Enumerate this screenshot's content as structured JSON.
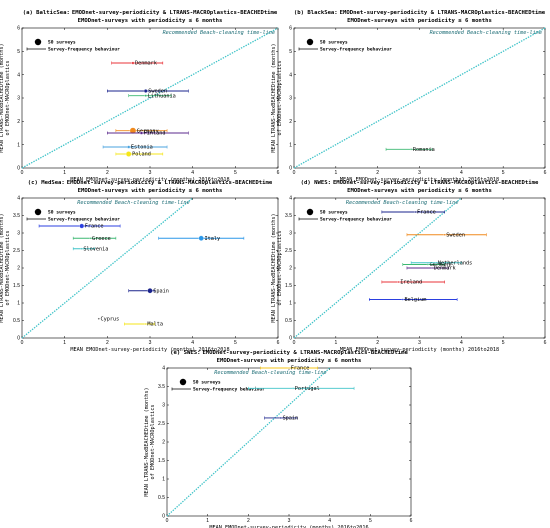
{
  "chart_data": [
    {
      "type": "scatter",
      "panel": "(a) BalticSea:",
      "title_line1": "EMODnet-survey-periodicity & LTRANS-MACROplastics-BEACHEDtime",
      "title_line2": "EMODnet-surveys with periodicity ≤ 6 months",
      "xlabel": "MEAN EMODnet-survey-periodicity (months) 2016to2018",
      "ylabel_line1": "MEAN LTRANS-MaxBEACHEDtime (months)",
      "ylabel_line2": "of EMODnet-MACROplastics",
      "xlim": [
        0,
        6
      ],
      "ylim": [
        0,
        6
      ],
      "xticks": [
        0,
        1,
        2,
        3,
        4,
        5,
        6
      ],
      "yticks": [
        0,
        1,
        2,
        3,
        4,
        5,
        6
      ],
      "diagonal_label": "Recommended Beach-cleaning time-line",
      "legend_size_label": "50 surveys",
      "legend_bar_label": "Survey-frequency behaviour",
      "points": [
        {
          "name": "Denmark",
          "x": 2.6,
          "y": 4.5,
          "xerr": [
            2.1,
            3.3
          ],
          "surveys": 8,
          "color": "#e8333a"
        },
        {
          "name": "Sweden",
          "x": 2.9,
          "y": 3.3,
          "xerr": [
            2.0,
            3.9
          ],
          "surveys": 14,
          "color": "#1a238c"
        },
        {
          "name": "Lithuania",
          "x": 2.9,
          "y": 3.1,
          "xerr": [
            2.5,
            3.5
          ],
          "surveys": 6,
          "color": "#3cb872"
        },
        {
          "name": "Germany",
          "x": 2.6,
          "y": 1.6,
          "xerr": [
            2.2,
            3.4
          ],
          "surveys": 46,
          "color": "#f08a1e"
        },
        {
          "name": "Finland",
          "x": 2.8,
          "y": 1.5,
          "xerr": [
            2.0,
            3.9
          ],
          "surveys": 10,
          "color": "#5b2a8c"
        },
        {
          "name": "Estonia",
          "x": 2.5,
          "y": 0.9,
          "xerr": [
            1.9,
            3.4
          ],
          "surveys": 10,
          "color": "#4aa3df"
        },
        {
          "name": "Poland",
          "x": 2.5,
          "y": 0.6,
          "xerr": [
            2.2,
            3.3
          ],
          "surveys": 34,
          "color": "#f5e619"
        }
      ]
    },
    {
      "type": "scatter",
      "panel": "(b) BlackSea:",
      "title_line1": "EMODnet-survey-periodicity & LTRANS-MACROplastics-BEACHEDtime",
      "title_line2": "EMODnet-surveys with periodicity ≤ 6 months",
      "xlabel": "MEAN EMODnet-survey-periodicity (months) 2016to2018",
      "ylabel_line1": "MEAN LTRANS-MaxBEACHEDtime (months)",
      "ylabel_line2": "of EMODnet-MACROplastics",
      "xlim": [
        0,
        6
      ],
      "ylim": [
        0,
        6
      ],
      "xticks": [
        0,
        1,
        2,
        3,
        4,
        5,
        6
      ],
      "yticks": [
        0,
        1,
        2,
        3,
        4,
        5,
        6
      ],
      "diagonal_label": "Recommended Beach-cleaning time-line",
      "legend_size_label": "50 surveys",
      "legend_bar_label": "Survey-frequency behaviour",
      "points": [
        {
          "name": "Romania",
          "x": 2.8,
          "y": 0.8,
          "xerr": [
            2.2,
            3.3
          ],
          "surveys": 2,
          "color": "#3cb872"
        }
      ]
    },
    {
      "type": "scatter",
      "panel": "(c) MedSea:",
      "title_line1": "EMODnet-survey-periodicity & LTRANS-MACROplastics-BEACHEDtime",
      "title_line2": "EMODnet-surveys with periodicity ≤ 6 months",
      "xlabel": "MEAN EMODnet-survey-periodicity (months) 2016to2018",
      "ylabel_line1": "MEAN LTRANS-MaxBEACHEDtime (months)",
      "ylabel_line2": "of EMODnet-MACROplastics",
      "xlim": [
        0,
        6
      ],
      "ylim": [
        0,
        4
      ],
      "xticks": [
        0,
        1,
        2,
        3,
        4,
        5,
        6
      ],
      "yticks": [
        0,
        0.5,
        1,
        1.5,
        2,
        2.5,
        3,
        3.5,
        4
      ],
      "diagonal_label": "Recommended Beach-cleaning time-line",
      "legend_size_label": "50 surveys",
      "legend_bar_label": "Survey-frequency behaviour",
      "points": [
        {
          "name": "France",
          "x": 1.4,
          "y": 3.2,
          "xerr": [
            0.4,
            2.3
          ],
          "surveys": 24,
          "color": "#2b3fe0"
        },
        {
          "name": "Italy",
          "x": 4.2,
          "y": 2.85,
          "xerr": [
            3.2,
            5.2
          ],
          "surveys": 30,
          "color": "#2b97e8"
        },
        {
          "name": "Greece",
          "x": 1.6,
          "y": 2.85,
          "xerr": [
            1.2,
            2.2
          ],
          "surveys": 4,
          "color": "#3cb872"
        },
        {
          "name": "Slovenia",
          "x": 1.4,
          "y": 2.55,
          "xerr": [
            1.2,
            1.7
          ],
          "surveys": 3,
          "color": "#3ec3c8"
        },
        {
          "name": "Spain",
          "x": 3.0,
          "y": 1.35,
          "xerr": [
            2.5,
            3.1
          ],
          "surveys": 30,
          "color": "#1a238c"
        },
        {
          "name": "Cyprus",
          "x": 1.8,
          "y": 0.55,
          "xerr": [
            1.8,
            1.8
          ],
          "surveys": 1,
          "color": "#555555"
        },
        {
          "name": "Malta",
          "x": 2.9,
          "y": 0.4,
          "xerr": [
            2.4,
            3.1
          ],
          "surveys": 2,
          "color": "#f5e619"
        }
      ]
    },
    {
      "type": "scatter",
      "panel": "(d) NWES:",
      "title_line1": "EMODnet-survey-periodicity & LTRANS-MACROplastics-BEACHEDtime",
      "title_line2": "EMODnet-surveys with periodicity ≤ 6 months",
      "xlabel": "MEAN EMODnet-survey-periodicity (months) 2016to2018",
      "ylabel_line1": "MEAN LTRANS-MaxBEACHEDtime (months)",
      "ylabel_line2": "of EMODnet-MACROplastics",
      "xlim": [
        0,
        6
      ],
      "ylim": [
        0,
        4
      ],
      "xticks": [
        0,
        1,
        2,
        3,
        4,
        5,
        6
      ],
      "yticks": [
        0,
        0.5,
        1,
        1.5,
        2,
        2.5,
        3,
        3.5,
        4
      ],
      "diagonal_label": "Recommended Beach-cleaning time-line",
      "legend_size_label": "50 surveys",
      "legend_bar_label": "Survey-frequency behaviour",
      "points": [
        {
          "name": "France",
          "x": 2.9,
          "y": 3.6,
          "xerr": [
            2.1,
            3.6
          ],
          "surveys": 3,
          "color": "#1a238c"
        },
        {
          "name": "Sweden",
          "x": 3.6,
          "y": 2.95,
          "xerr": [
            2.7,
            4.6
          ],
          "surveys": 3,
          "color": "#f08a1e"
        },
        {
          "name": "Germany",
          "x": 3.2,
          "y": 2.1,
          "xerr": [
            2.6,
            3.6
          ],
          "surveys": 3,
          "color": "#3cb872"
        },
        {
          "name": "Netherlands",
          "x": 3.4,
          "y": 2.15,
          "xerr": [
            2.8,
            4.0
          ],
          "surveys": 3,
          "color": "#3ec3c8"
        },
        {
          "name": "Denmark",
          "x": 3.3,
          "y": 2.0,
          "xerr": [
            2.7,
            3.7
          ],
          "surveys": 3,
          "color": "#5b2a8c"
        },
        {
          "name": "Ireland",
          "x": 2.5,
          "y": 1.6,
          "xerr": [
            2.1,
            3.6
          ],
          "surveys": 3,
          "color": "#e8333a"
        },
        {
          "name": "Belgium",
          "x": 2.6,
          "y": 1.1,
          "xerr": [
            1.8,
            3.9
          ],
          "surveys": 1,
          "color": "#2b3fe0"
        }
      ]
    },
    {
      "type": "scatter",
      "panel": "(e) SWES:",
      "title_line1": "EMODnet-survey-periodicity & LTRANS-MACROplastics-BEACHEDtime",
      "title_line2": "EMODnet-surveys with periodicity ≤ 6 months",
      "xlabel": "MEAN EMODnet-survey-periodicity (months) 2016to2016",
      "ylabel_line1": "MEAN LTRANS-MaxBEACHEDtime (months)",
      "ylabel_line2": "of EMODnet-MACROplastics",
      "xlim": [
        0,
        6
      ],
      "ylim": [
        0,
        4
      ],
      "xticks": [
        0,
        1,
        2,
        3,
        4,
        5,
        6
      ],
      "yticks": [
        0,
        0.5,
        1,
        1.5,
        2,
        2.5,
        3,
        3.5,
        4
      ],
      "diagonal_label": "Recommended Beach-cleaning time-line",
      "legend_size_label": "50 surveys",
      "legend_bar_label": "Survey-frequency behaviour",
      "points": [
        {
          "name": "France",
          "x": 3.0,
          "y": 4.0,
          "xerr": [
            2.3,
            3.7
          ],
          "surveys": 3,
          "color": "#f5c619"
        },
        {
          "name": "Portugal",
          "x": 3.1,
          "y": 3.45,
          "xerr": [
            2.0,
            4.6
          ],
          "surveys": 3,
          "color": "#3ec3c8"
        },
        {
          "name": "Spain",
          "x": 2.8,
          "y": 2.65,
          "xerr": [
            2.4,
            3.2
          ],
          "surveys": 3,
          "color": "#1a238c"
        }
      ]
    }
  ]
}
